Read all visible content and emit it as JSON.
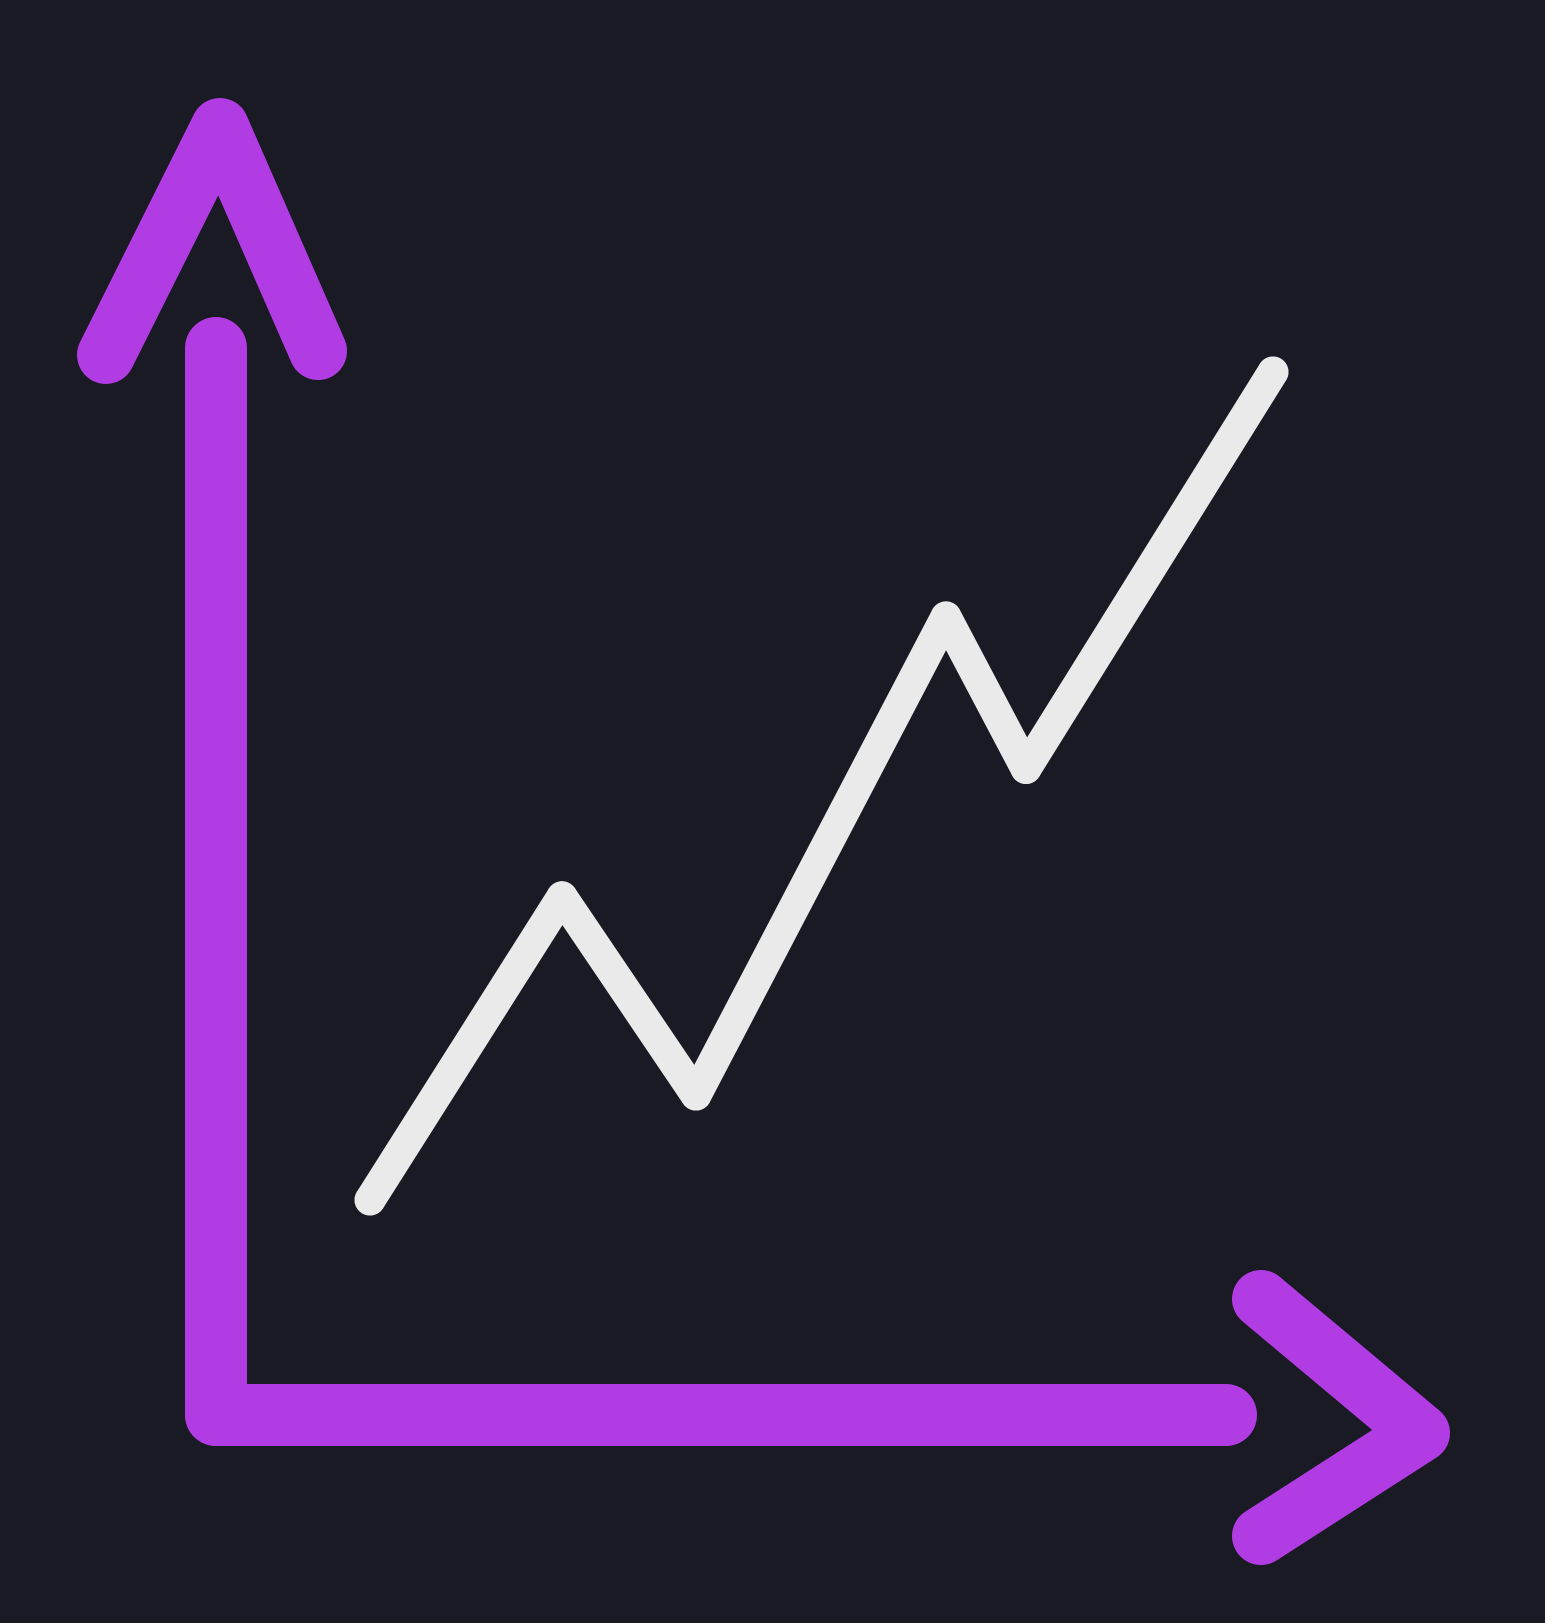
{
  "icon": {
    "name": "line-chart-icon",
    "description": "",
    "colors": {
      "background": "#191a23",
      "axes": "#b23ce4",
      "trend_line": "#eaeaea"
    }
  },
  "chart_data": {
    "type": "line",
    "title": "",
    "xlabel": "",
    "ylabel": "",
    "grid": false,
    "series": [
      {
        "values": [
          0.0,
          0.52,
          0.18,
          1.0,
          0.74,
          1.42
        ]
      }
    ]
  }
}
